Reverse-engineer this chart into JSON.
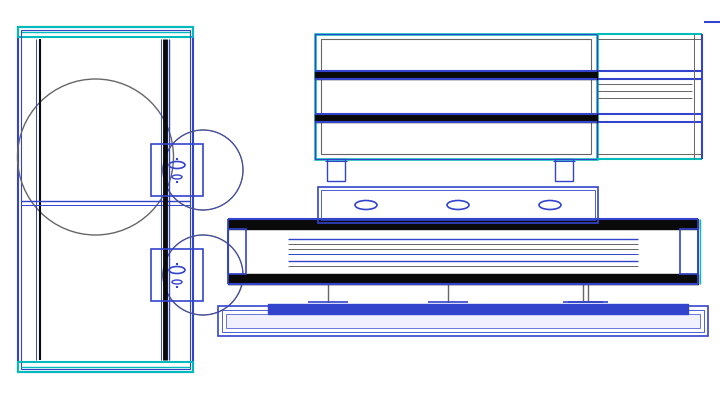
{
  "bg_color": "#ffffff",
  "dark_blue": "#1a1aaa",
  "blue": "#3344cc",
  "light_blue": "#6677ee",
  "cyan": "#00bbbb",
  "black": "#0a0a0a",
  "gray": "#666666",
  "light_gray": "#999999"
}
